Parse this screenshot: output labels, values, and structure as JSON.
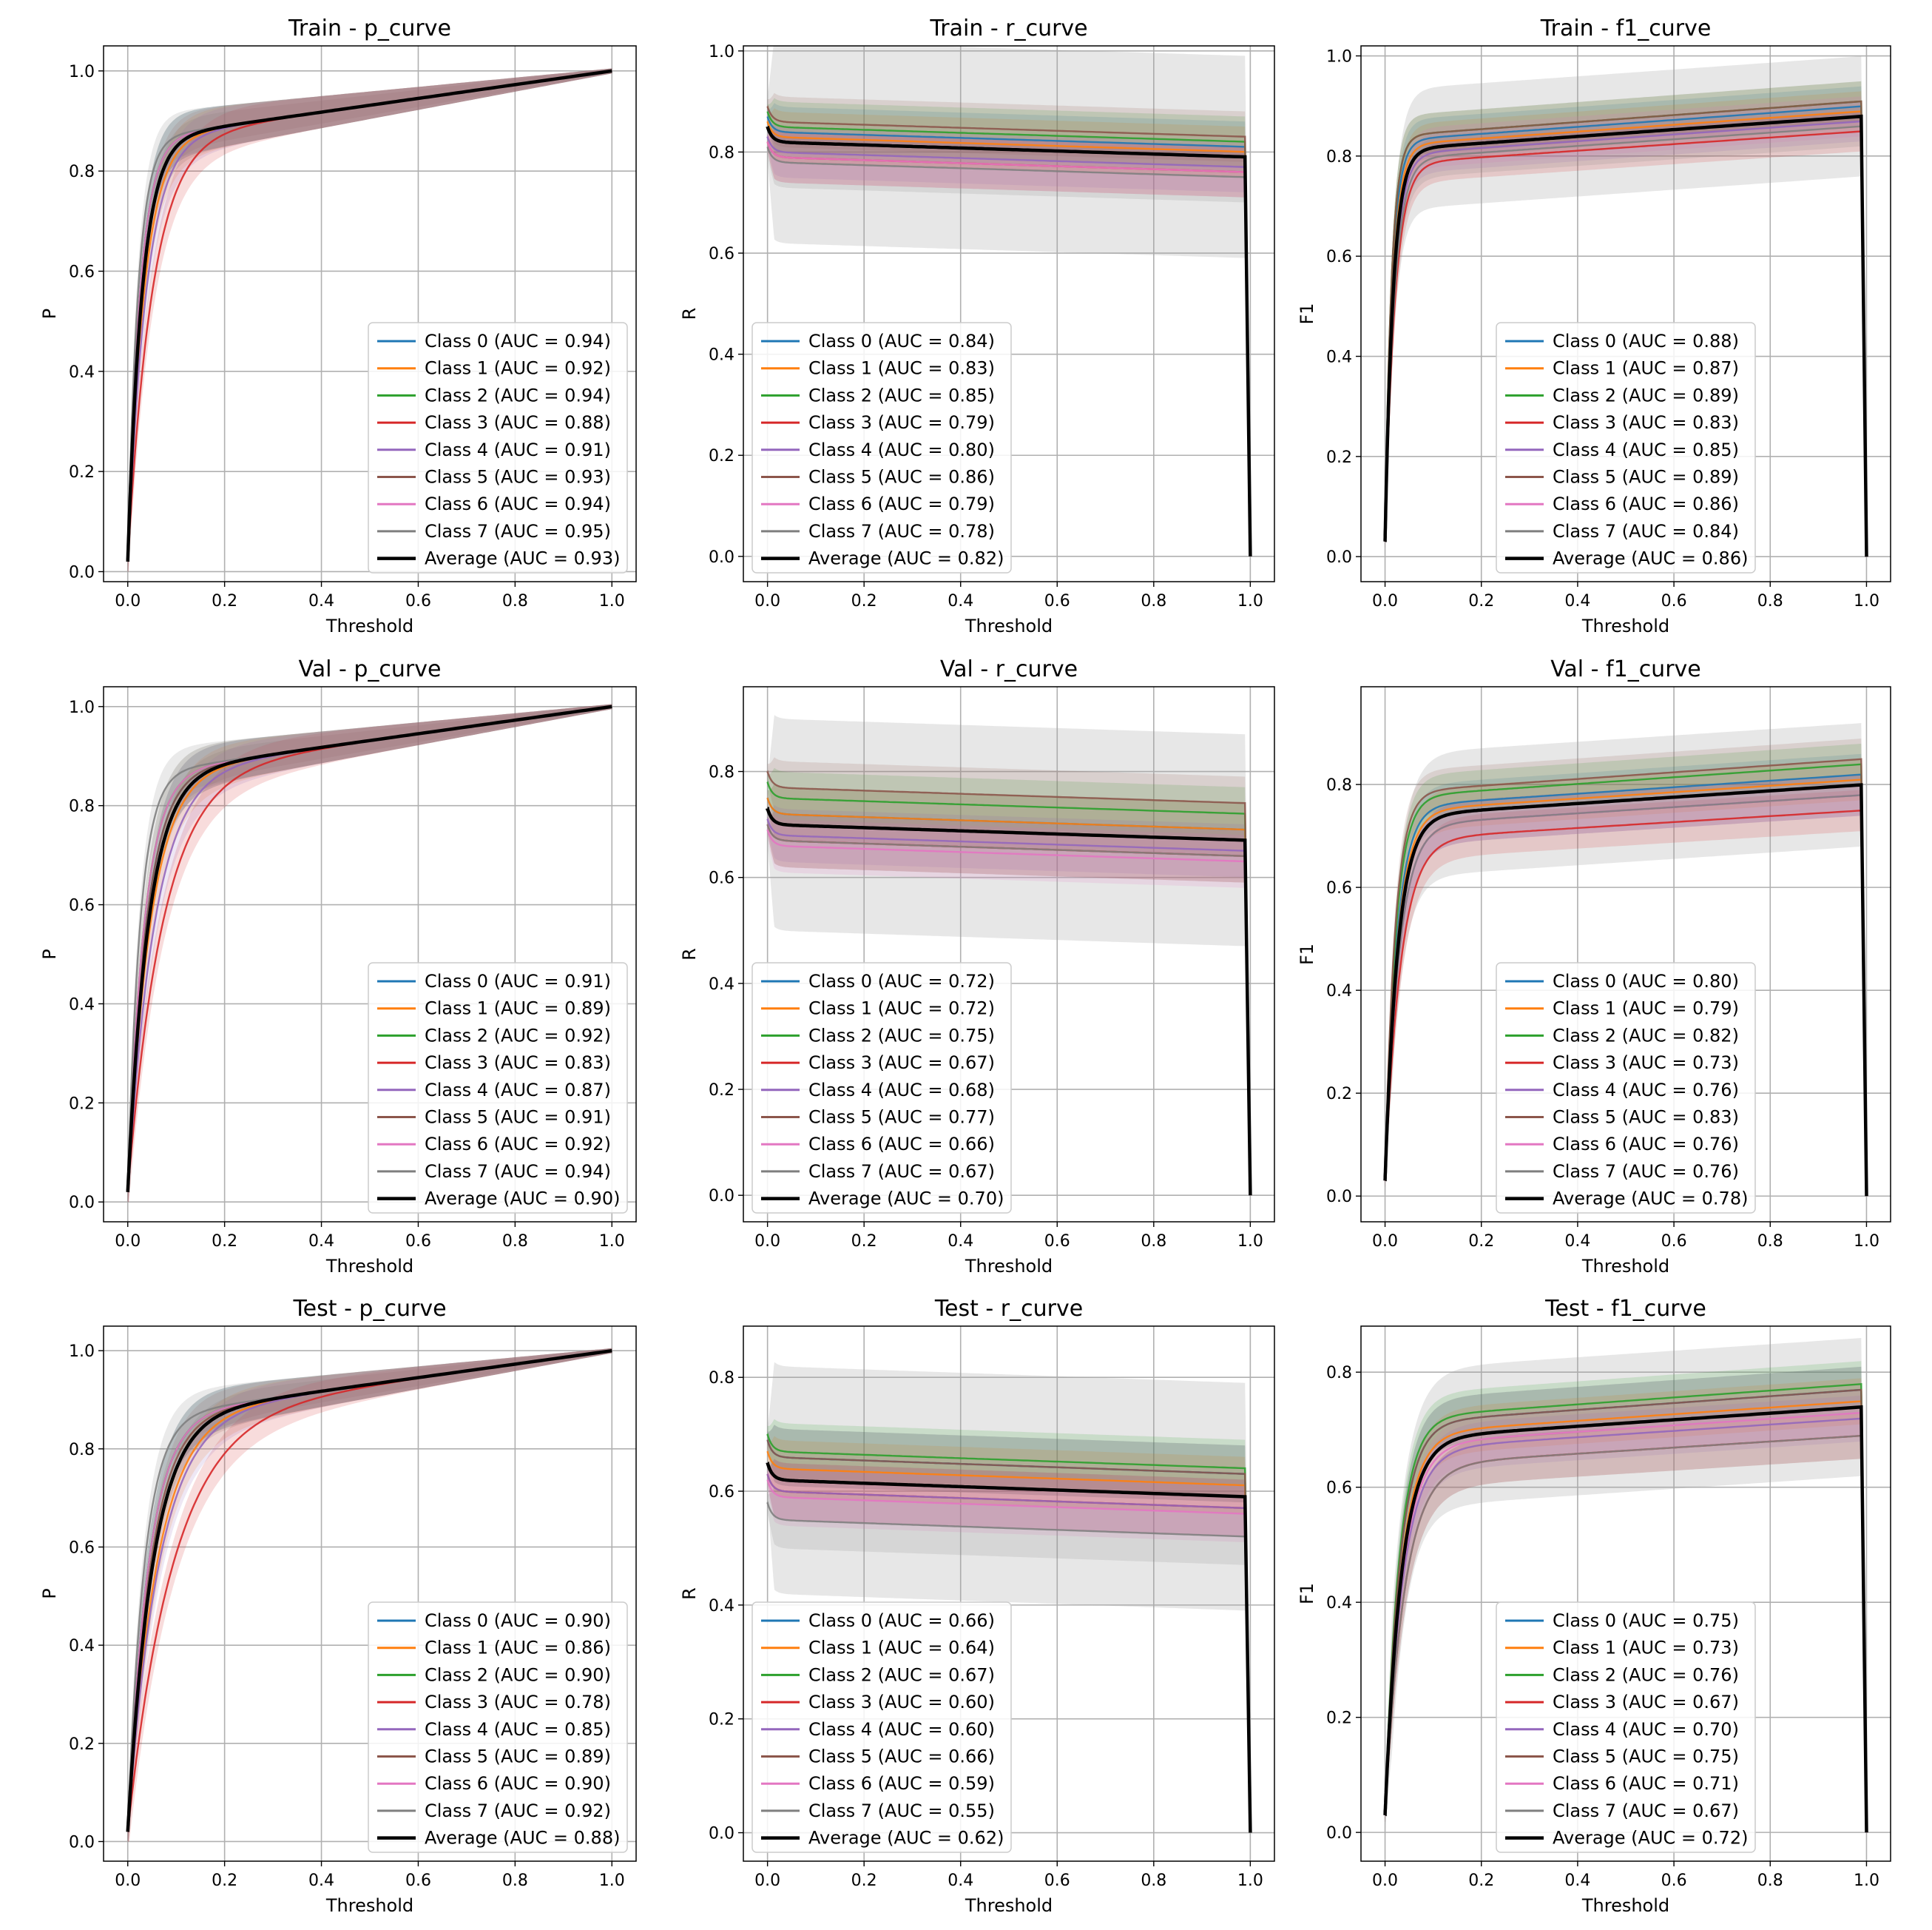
{
  "colors": {
    "class": [
      "#1f77b4",
      "#ff7f0e",
      "#2ca02c",
      "#d62728",
      "#9467bd",
      "#8c564b",
      "#e377c2",
      "#7f7f7f"
    ],
    "average": "#000000",
    "band": "#9e9e9e",
    "grid": "#b0b0b0"
  },
  "chart_data": [
    {
      "type": "line",
      "title": "Train - p_curve",
      "curve": "p",
      "split": "Train",
      "xlabel": "Threshold",
      "ylabel": "P",
      "xlim": [
        -0.05,
        1.05
      ],
      "ylim": [
        -0.02,
        1.05
      ],
      "xticks": [
        "0.0",
        "0.2",
        "0.4",
        "0.6",
        "0.8",
        "1.0"
      ],
      "yticks": [
        "0.0",
        "0.2",
        "0.4",
        "0.6",
        "0.8",
        "1.0"
      ],
      "ytick_values": [
        0,
        0.2,
        0.4,
        0.6,
        0.8,
        1.0
      ],
      "legend_loc": "lower-right",
      "series": [
        {
          "name": "Class 0 (AUC = 0.94)",
          "auc": 0.94
        },
        {
          "name": "Class 1 (AUC = 0.92)",
          "auc": 0.92
        },
        {
          "name": "Class 2 (AUC = 0.94)",
          "auc": 0.94
        },
        {
          "name": "Class 3 (AUC = 0.88)",
          "auc": 0.88
        },
        {
          "name": "Class 4 (AUC = 0.91)",
          "auc": 0.91
        },
        {
          "name": "Class 5 (AUC = 0.93)",
          "auc": 0.93
        },
        {
          "name": "Class 6 (AUC = 0.94)",
          "auc": 0.94
        },
        {
          "name": "Class 7 (AUC = 0.95)",
          "auc": 0.95
        },
        {
          "name": "Average (AUC = 0.93)",
          "auc": 0.93,
          "average": true
        }
      ]
    },
    {
      "type": "line",
      "title": "Train - r_curve",
      "curve": "r",
      "split": "Train",
      "xlabel": "Threshold",
      "ylabel": "R",
      "xlim": [
        -0.05,
        1.05
      ],
      "ylim": [
        -0.05,
        1.01
      ],
      "xticks": [
        "0.0",
        "0.2",
        "0.4",
        "0.6",
        "0.8",
        "1.0"
      ],
      "yticks": [
        "0.0",
        "0.2",
        "0.4",
        "0.6",
        "0.8",
        "1.0"
      ],
      "ytick_values": [
        0,
        0.2,
        0.4,
        0.6,
        0.8,
        1.0
      ],
      "legend_loc": "lower-left",
      "series": [
        {
          "name": "Class 0 (AUC = 0.84)",
          "auc": 0.84
        },
        {
          "name": "Class 1 (AUC = 0.83)",
          "auc": 0.83
        },
        {
          "name": "Class 2 (AUC = 0.85)",
          "auc": 0.85
        },
        {
          "name": "Class 3 (AUC = 0.79)",
          "auc": 0.79
        },
        {
          "name": "Class 4 (AUC = 0.80)",
          "auc": 0.8
        },
        {
          "name": "Class 5 (AUC = 0.86)",
          "auc": 0.86
        },
        {
          "name": "Class 6 (AUC = 0.79)",
          "auc": 0.79
        },
        {
          "name": "Class 7 (AUC = 0.78)",
          "auc": 0.78
        },
        {
          "name": "Average (AUC = 0.82)",
          "auc": 0.82,
          "average": true
        }
      ]
    },
    {
      "type": "line",
      "title": "Train - f1_curve",
      "curve": "f1",
      "split": "Train",
      "xlabel": "Threshold",
      "ylabel": "F1",
      "xlim": [
        -0.05,
        1.05
      ],
      "ylim": [
        -0.05,
        1.02
      ],
      "xticks": [
        "0.0",
        "0.2",
        "0.4",
        "0.6",
        "0.8",
        "1.0"
      ],
      "yticks": [
        "0.0",
        "0.2",
        "0.4",
        "0.6",
        "0.8",
        "1.0"
      ],
      "ytick_values": [
        0,
        0.2,
        0.4,
        0.6,
        0.8,
        1.0
      ],
      "legend_loc": "lower-center",
      "series": [
        {
          "name": "Class 0 (AUC = 0.88)",
          "auc": 0.88
        },
        {
          "name": "Class 1 (AUC = 0.87)",
          "auc": 0.87
        },
        {
          "name": "Class 2 (AUC = 0.89)",
          "auc": 0.89
        },
        {
          "name": "Class 3 (AUC = 0.83)",
          "auc": 0.83
        },
        {
          "name": "Class 4 (AUC = 0.85)",
          "auc": 0.85
        },
        {
          "name": "Class 5 (AUC = 0.89)",
          "auc": 0.89
        },
        {
          "name": "Class 6 (AUC = 0.86)",
          "auc": 0.86
        },
        {
          "name": "Class 7 (AUC = 0.84)",
          "auc": 0.84
        },
        {
          "name": "Average (AUC = 0.86)",
          "auc": 0.86,
          "average": true
        }
      ]
    },
    {
      "type": "line",
      "title": "Val - p_curve",
      "curve": "p",
      "split": "Val",
      "xlabel": "Threshold",
      "ylabel": "P",
      "xlim": [
        -0.05,
        1.05
      ],
      "ylim": [
        -0.04,
        1.04
      ],
      "xticks": [
        "0.0",
        "0.2",
        "0.4",
        "0.6",
        "0.8",
        "1.0"
      ],
      "yticks": [
        "0.0",
        "0.2",
        "0.4",
        "0.6",
        "0.8",
        "1.0"
      ],
      "ytick_values": [
        0,
        0.2,
        0.4,
        0.6,
        0.8,
        1.0
      ],
      "legend_loc": "lower-right",
      "series": [
        {
          "name": "Class 0 (AUC = 0.91)",
          "auc": 0.91
        },
        {
          "name": "Class 1 (AUC = 0.89)",
          "auc": 0.89
        },
        {
          "name": "Class 2 (AUC = 0.92)",
          "auc": 0.92
        },
        {
          "name": "Class 3 (AUC = 0.83)",
          "auc": 0.83
        },
        {
          "name": "Class 4 (AUC = 0.87)",
          "auc": 0.87
        },
        {
          "name": "Class 5 (AUC = 0.91)",
          "auc": 0.91
        },
        {
          "name": "Class 6 (AUC = 0.92)",
          "auc": 0.92
        },
        {
          "name": "Class 7 (AUC = 0.94)",
          "auc": 0.94
        },
        {
          "name": "Average (AUC = 0.90)",
          "auc": 0.9,
          "average": true
        }
      ]
    },
    {
      "type": "line",
      "title": "Val - r_curve",
      "curve": "r",
      "split": "Val",
      "xlabel": "Threshold",
      "ylabel": "R",
      "xlim": [
        -0.05,
        1.05
      ],
      "ylim": [
        -0.05,
        0.96
      ],
      "xticks": [
        "0.0",
        "0.2",
        "0.4",
        "0.6",
        "0.8",
        "1.0"
      ],
      "yticks": [
        "0.0",
        "0.2",
        "0.4",
        "0.6",
        "0.8"
      ],
      "ytick_values": [
        0,
        0.2,
        0.4,
        0.6,
        0.8
      ],
      "legend_loc": "lower-left",
      "series": [
        {
          "name": "Class 0 (AUC = 0.72)",
          "auc": 0.72
        },
        {
          "name": "Class 1 (AUC = 0.72)",
          "auc": 0.72
        },
        {
          "name": "Class 2 (AUC = 0.75)",
          "auc": 0.75
        },
        {
          "name": "Class 3 (AUC = 0.67)",
          "auc": 0.67
        },
        {
          "name": "Class 4 (AUC = 0.68)",
          "auc": 0.68
        },
        {
          "name": "Class 5 (AUC = 0.77)",
          "auc": 0.77
        },
        {
          "name": "Class 6 (AUC = 0.66)",
          "auc": 0.66
        },
        {
          "name": "Class 7 (AUC = 0.67)",
          "auc": 0.67
        },
        {
          "name": "Average (AUC = 0.70)",
          "auc": 0.7,
          "average": true
        }
      ]
    },
    {
      "type": "line",
      "title": "Val - f1_curve",
      "curve": "f1",
      "split": "Val",
      "xlabel": "Threshold",
      "ylabel": "F1",
      "xlim": [
        -0.05,
        1.05
      ],
      "ylim": [
        -0.05,
        0.99
      ],
      "xticks": [
        "0.0",
        "0.2",
        "0.4",
        "0.6",
        "0.8",
        "1.0"
      ],
      "yticks": [
        "0.0",
        "0.2",
        "0.4",
        "0.6",
        "0.8"
      ],
      "ytick_values": [
        0,
        0.2,
        0.4,
        0.6,
        0.8
      ],
      "legend_loc": "lower-center",
      "series": [
        {
          "name": "Class 0 (AUC = 0.80)",
          "auc": 0.8
        },
        {
          "name": "Class 1 (AUC = 0.79)",
          "auc": 0.79
        },
        {
          "name": "Class 2 (AUC = 0.82)",
          "auc": 0.82
        },
        {
          "name": "Class 3 (AUC = 0.73)",
          "auc": 0.73
        },
        {
          "name": "Class 4 (AUC = 0.76)",
          "auc": 0.76
        },
        {
          "name": "Class 5 (AUC = 0.83)",
          "auc": 0.83
        },
        {
          "name": "Class 6 (AUC = 0.76)",
          "auc": 0.76
        },
        {
          "name": "Class 7 (AUC = 0.76)",
          "auc": 0.76
        },
        {
          "name": "Average (AUC = 0.78)",
          "auc": 0.78,
          "average": true
        }
      ]
    },
    {
      "type": "line",
      "title": "Test - p_curve",
      "curve": "p",
      "split": "Test",
      "xlabel": "Threshold",
      "ylabel": "P",
      "xlim": [
        -0.05,
        1.05
      ],
      "ylim": [
        -0.04,
        1.05
      ],
      "xticks": [
        "0.0",
        "0.2",
        "0.4",
        "0.6",
        "0.8",
        "1.0"
      ],
      "yticks": [
        "0.0",
        "0.2",
        "0.4",
        "0.6",
        "0.8",
        "1.0"
      ],
      "ytick_values": [
        0,
        0.2,
        0.4,
        0.6,
        0.8,
        1.0
      ],
      "legend_loc": "lower-right",
      "series": [
        {
          "name": "Class 0 (AUC = 0.90)",
          "auc": 0.9
        },
        {
          "name": "Class 1 (AUC = 0.86)",
          "auc": 0.86
        },
        {
          "name": "Class 2 (AUC = 0.90)",
          "auc": 0.9
        },
        {
          "name": "Class 3 (AUC = 0.78)",
          "auc": 0.78
        },
        {
          "name": "Class 4 (AUC = 0.85)",
          "auc": 0.85
        },
        {
          "name": "Class 5 (AUC = 0.89)",
          "auc": 0.89
        },
        {
          "name": "Class 6 (AUC = 0.90)",
          "auc": 0.9
        },
        {
          "name": "Class 7 (AUC = 0.92)",
          "auc": 0.92
        },
        {
          "name": "Average (AUC = 0.88)",
          "auc": 0.88,
          "average": true
        }
      ]
    },
    {
      "type": "line",
      "title": "Test - r_curve",
      "curve": "r",
      "split": "Test",
      "xlabel": "Threshold",
      "ylabel": "R",
      "xlim": [
        -0.05,
        1.05
      ],
      "ylim": [
        -0.05,
        0.89
      ],
      "xticks": [
        "0.0",
        "0.2",
        "0.4",
        "0.6",
        "0.8",
        "1.0"
      ],
      "yticks": [
        "0.0",
        "0.2",
        "0.4",
        "0.6",
        "0.8"
      ],
      "ytick_values": [
        0,
        0.2,
        0.4,
        0.6,
        0.8
      ],
      "legend_loc": "lower-left",
      "series": [
        {
          "name": "Class 0 (AUC = 0.66)",
          "auc": 0.66
        },
        {
          "name": "Class 1 (AUC = 0.64)",
          "auc": 0.64
        },
        {
          "name": "Class 2 (AUC = 0.67)",
          "auc": 0.67
        },
        {
          "name": "Class 3 (AUC = 0.60)",
          "auc": 0.6
        },
        {
          "name": "Class 4 (AUC = 0.60)",
          "auc": 0.6
        },
        {
          "name": "Class 5 (AUC = 0.66)",
          "auc": 0.66
        },
        {
          "name": "Class 6 (AUC = 0.59)",
          "auc": 0.59
        },
        {
          "name": "Class 7 (AUC = 0.55)",
          "auc": 0.55
        },
        {
          "name": "Average (AUC = 0.62)",
          "auc": 0.62,
          "average": true
        }
      ]
    },
    {
      "type": "line",
      "title": "Test - f1_curve",
      "curve": "f1",
      "split": "Test",
      "xlabel": "Threshold",
      "ylabel": "F1",
      "xlim": [
        -0.05,
        1.05
      ],
      "ylim": [
        -0.05,
        0.88
      ],
      "xticks": [
        "0.0",
        "0.2",
        "0.4",
        "0.6",
        "0.8",
        "1.0"
      ],
      "yticks": [
        "0.0",
        "0.2",
        "0.4",
        "0.6",
        "0.8"
      ],
      "ytick_values": [
        0,
        0.2,
        0.4,
        0.6,
        0.8
      ],
      "legend_loc": "lower-center",
      "series": [
        {
          "name": "Class 0 (AUC = 0.75)",
          "auc": 0.75
        },
        {
          "name": "Class 1 (AUC = 0.73)",
          "auc": 0.73
        },
        {
          "name": "Class 2 (AUC = 0.76)",
          "auc": 0.76
        },
        {
          "name": "Class 3 (AUC = 0.67)",
          "auc": 0.67
        },
        {
          "name": "Class 4 (AUC = 0.70)",
          "auc": 0.7
        },
        {
          "name": "Class 5 (AUC = 0.75)",
          "auc": 0.75
        },
        {
          "name": "Class 6 (AUC = 0.71)",
          "auc": 0.71
        },
        {
          "name": "Class 7 (AUC = 0.67)",
          "auc": 0.67
        },
        {
          "name": "Average (AUC = 0.72)",
          "auc": 0.72,
          "average": true
        }
      ]
    }
  ]
}
